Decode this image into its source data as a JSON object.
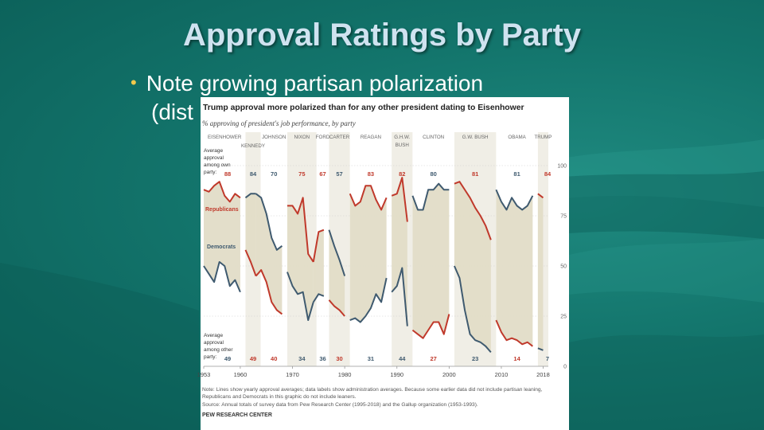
{
  "slide": {
    "title": "Approval Ratings by Party",
    "bullet_line1": "Note growing partisan polarization",
    "bullet_line2": "(dist"
  },
  "figure": {
    "title": "Trump approval more polarized than for any other president dating to Eisenhower",
    "subtitle": "% approving of president's job performance, by party",
    "note": "Note: Lines show yearly approval averages; data labels show administration averages. Because some earlier data did not include partisan leaning, Republicans and Democrats in this graphic do not include leaners.",
    "source": "Source: Annual totals of survey data from Pew Research Center (1995-2018) and the Gallup organization (1953-1993).",
    "logo": "PEW RESEARCH CENTER"
  },
  "chart_data": {
    "type": "line",
    "title": "Trump approval more polarized than for any other president dating to Eisenhower",
    "subtitle": "% approving of president's job performance, by party",
    "xlim": [
      1953,
      2019
    ],
    "ylim": [
      0,
      100
    ],
    "x_ticks": [
      "1953",
      "1960",
      "1970",
      "1980",
      "1990",
      "2000",
      "2010",
      "2018"
    ],
    "y_ticks": [
      "100",
      "75",
      "50",
      "25",
      "0"
    ],
    "own_party_label": [
      "Average",
      "approval",
      "among own",
      "party:"
    ],
    "other_party_label": [
      "Average",
      "approval",
      "among other",
      "party:"
    ],
    "colors": {
      "republicans": "#c0392b",
      "democrats": "#3f5a6f",
      "fill": "#e2dcc7",
      "band": "#f0eee6"
    },
    "presidents": [
      {
        "name": "EISENHOWER",
        "name2": "",
        "party": "R",
        "start": 1953,
        "end": 1960.99,
        "own": "88",
        "other": "49",
        "shade": false
      },
      {
        "name": "KENNEDY",
        "name2": "",
        "party": "D",
        "start": 1961,
        "end": 1963.9,
        "own": "84",
        "other": "49",
        "shade": true
      },
      {
        "name": "JOHNSON",
        "name2": "",
        "party": "D",
        "start": 1963.9,
        "end": 1968.99,
        "own": "70",
        "other": "40",
        "shade": false
      },
      {
        "name": "NIXON",
        "name2": "",
        "party": "R",
        "start": 1969,
        "end": 1974.6,
        "own": "75",
        "other": "34",
        "shade": true
      },
      {
        "name": "FORD",
        "name2": "",
        "party": "R",
        "start": 1974.6,
        "end": 1976.99,
        "own": "67",
        "other": "36",
        "shade": false
      },
      {
        "name": "CARTER",
        "name2": "",
        "party": "D",
        "start": 1977,
        "end": 1980.99,
        "own": "57",
        "other": "30",
        "shade": true
      },
      {
        "name": "REAGAN",
        "name2": "",
        "party": "R",
        "start": 1981,
        "end": 1988.99,
        "own": "83",
        "other": "31",
        "shade": false
      },
      {
        "name": "G.H.W.",
        "name2": "BUSH",
        "party": "R",
        "start": 1989,
        "end": 1992.99,
        "own": "82",
        "other": "44",
        "shade": true
      },
      {
        "name": "CLINTON",
        "name2": "",
        "party": "D",
        "start": 1993,
        "end": 2000.99,
        "own": "80",
        "other": "27",
        "shade": false
      },
      {
        "name": "G.W. BUSH",
        "name2": "",
        "party": "R",
        "start": 2001,
        "end": 2008.99,
        "own": "81",
        "other": "23",
        "shade": true
      },
      {
        "name": "OBAMA",
        "name2": "",
        "party": "D",
        "start": 2009,
        "end": 2016.99,
        "own": "81",
        "other": "14",
        "shade": false
      },
      {
        "name": "TRUMP",
        "name2": "",
        "party": "R",
        "start": 2017,
        "end": 2019,
        "own": "84",
        "other": "7",
        "shade": true
      }
    ],
    "series": [
      {
        "name": "Republicans",
        "x": [
          1953,
          1954,
          1955,
          1956,
          1957,
          1958,
          1959,
          1960,
          1961,
          1962,
          1963,
          1964,
          1965,
          1966,
          1967,
          1968,
          1969,
          1970,
          1971,
          1972,
          1973,
          1974,
          1975,
          1976,
          1977,
          1978,
          1979,
          1980,
          1981,
          1982,
          1983,
          1984,
          1985,
          1986,
          1987,
          1988,
          1989,
          1990,
          1991,
          1992,
          1993,
          1994,
          1995,
          1996,
          1997,
          1998,
          1999,
          2000,
          2001,
          2002,
          2003,
          2004,
          2005,
          2006,
          2007,
          2008,
          2009,
          2010,
          2011,
          2012,
          2013,
          2014,
          2015,
          2016,
          2017,
          2018
        ],
        "y": [
          88,
          87,
          90,
          92,
          85,
          82,
          86,
          84,
          58,
          52,
          45,
          48,
          42,
          32,
          28,
          26,
          80,
          80,
          76,
          84,
          56,
          52,
          67,
          68,
          33,
          30,
          28,
          25,
          86,
          80,
          82,
          90,
          90,
          83,
          78,
          84,
          85,
          86,
          94,
          72,
          18,
          16,
          14,
          18,
          22,
          22,
          16,
          26,
          91,
          92,
          88,
          84,
          79,
          75,
          70,
          63,
          23,
          17,
          13,
          14,
          13,
          11,
          12,
          10,
          86,
          84
        ]
      },
      {
        "name": "Democrats",
        "x": [
          1953,
          1954,
          1955,
          1956,
          1957,
          1958,
          1959,
          1960,
          1961,
          1962,
          1963,
          1964,
          1965,
          1966,
          1967,
          1968,
          1969,
          1970,
          1971,
          1972,
          1973,
          1974,
          1975,
          1976,
          1977,
          1978,
          1979,
          1980,
          1981,
          1982,
          1983,
          1984,
          1985,
          1986,
          1987,
          1988,
          1989,
          1990,
          1991,
          1992,
          1993,
          1994,
          1995,
          1996,
          1997,
          1998,
          1999,
          2000,
          2001,
          2002,
          2003,
          2004,
          2005,
          2006,
          2007,
          2008,
          2009,
          2010,
          2011,
          2012,
          2013,
          2014,
          2015,
          2016,
          2017,
          2018
        ],
        "y": [
          50,
          46,
          42,
          52,
          50,
          40,
          43,
          37,
          84,
          86,
          86,
          84,
          76,
          64,
          58,
          60,
          47,
          40,
          36,
          37,
          23,
          32,
          36,
          35,
          68,
          60,
          53,
          45,
          23,
          24,
          22,
          25,
          29,
          36,
          32,
          44,
          37,
          40,
          49,
          20,
          85,
          78,
          78,
          88,
          88,
          91,
          88,
          88,
          50,
          44,
          28,
          16,
          13,
          12,
          10,
          7,
          88,
          82,
          78,
          84,
          80,
          78,
          80,
          85,
          9,
          8
        ]
      }
    ]
  }
}
